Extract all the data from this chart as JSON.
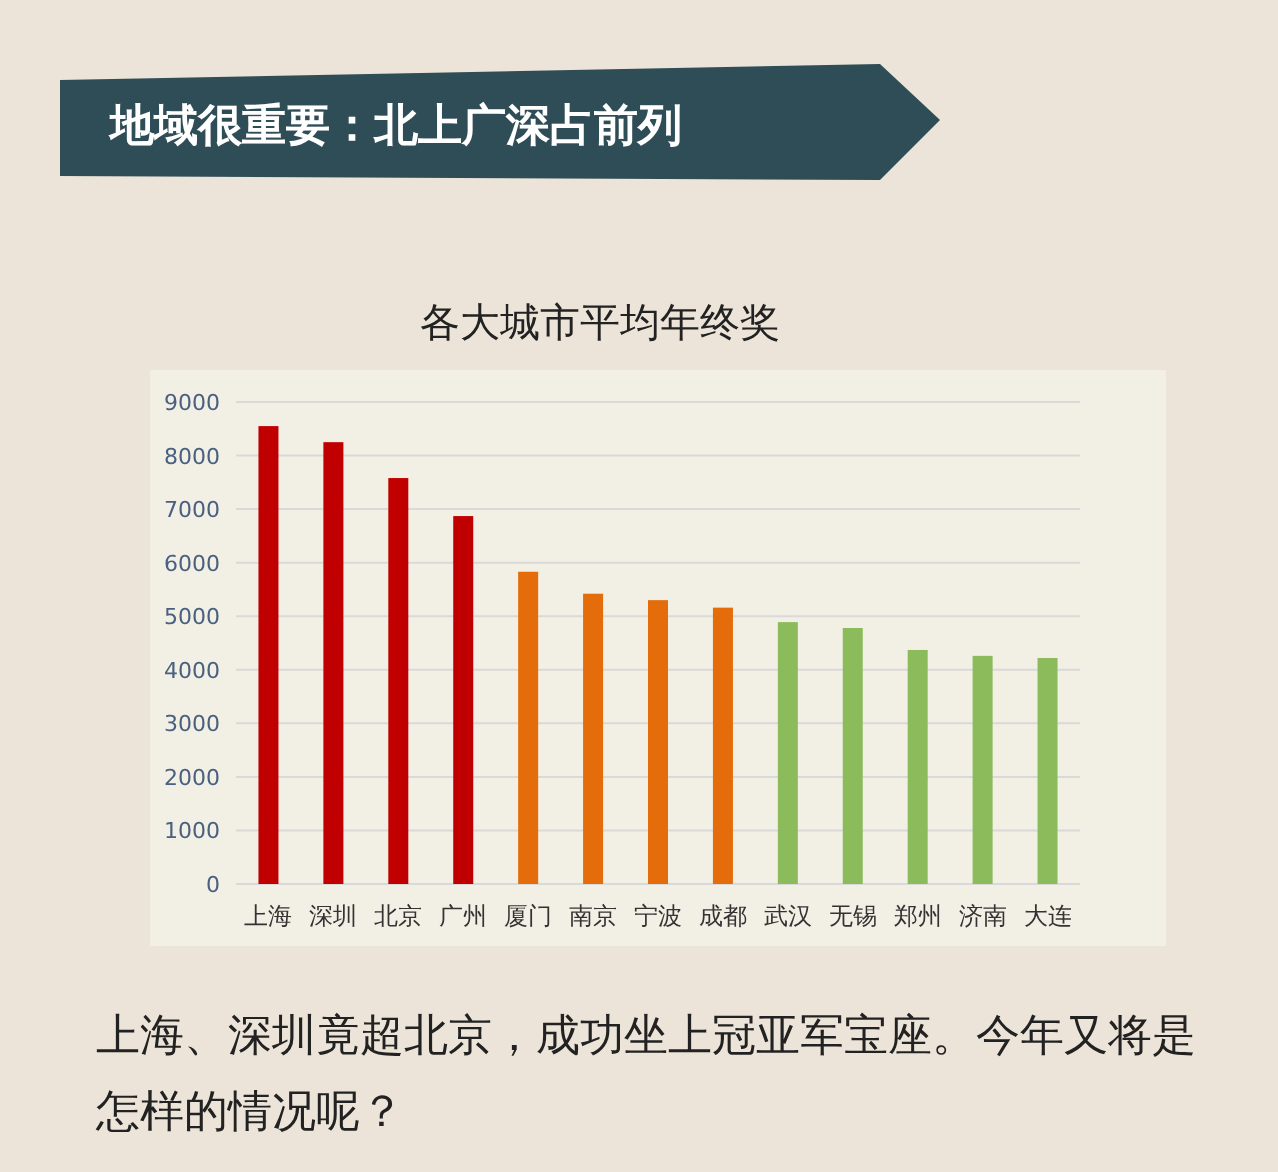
{
  "chart_data": {
    "type": "bar",
    "title": "各大城市平均年终奖",
    "categories": [
      "上海",
      "深圳",
      "北京",
      "广州",
      "厦门",
      "南京",
      "宁波",
      "成都",
      "武汉",
      "无锡",
      "郑州",
      "济南",
      "大连"
    ],
    "values": [
      8550,
      8250,
      7580,
      6870,
      5830,
      5420,
      5300,
      5160,
      4890,
      4780,
      4370,
      4260,
      4220
    ],
    "colors": [
      "#c00000",
      "#c00000",
      "#c00000",
      "#c00000",
      "#e46c0a",
      "#e46c0a",
      "#e46c0a",
      "#e46c0a",
      "#8cbb5c",
      "#8cbb5c",
      "#8cbb5c",
      "#8cbb5c",
      "#8cbb5c"
    ],
    "ylim": [
      0,
      9000
    ],
    "yticks": [
      0,
      1000,
      2000,
      3000,
      4000,
      5000,
      6000,
      7000,
      8000,
      9000
    ],
    "grid": "y",
    "annotations": [
      "地域很重要：北上广深占前列",
      "上海、深圳竟超北京，成功坐上冠亚军宝座。今年又将是怎样的情况呢？"
    ]
  }
}
